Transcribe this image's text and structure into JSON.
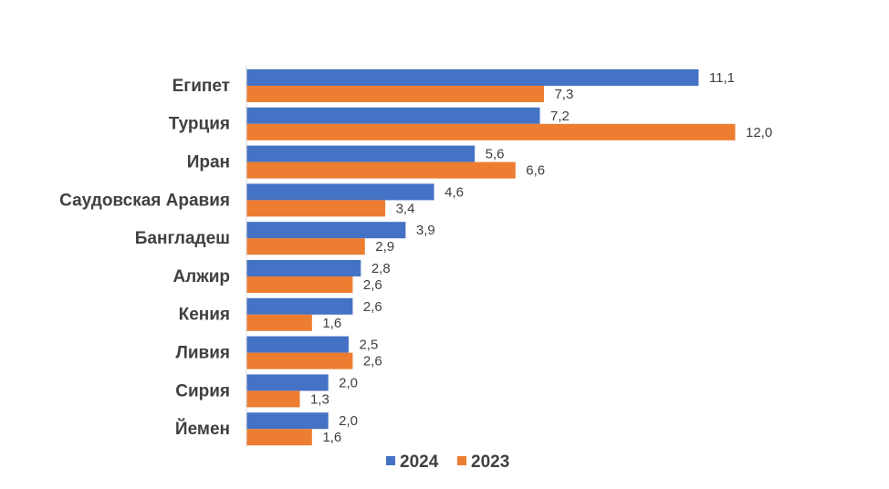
{
  "chart_data": {
    "type": "bar",
    "orientation": "horizontal",
    "categories": [
      "Египет",
      "Турция",
      "Иран",
      "Саудовская Аравия",
      "Бангладеш",
      "Алжир",
      "Кения",
      "Ливия",
      "Сирия",
      "Йемен"
    ],
    "series": [
      {
        "name": "2024",
        "color": "#4472C4",
        "values": [
          11.1,
          7.2,
          5.6,
          4.6,
          3.9,
          2.8,
          2.6,
          2.5,
          2.0,
          2.0
        ],
        "labels": [
          "11,1",
          "7,2",
          "5,6",
          "4,6",
          "3,9",
          "2,8",
          "2,6",
          "2,5",
          "2,0",
          "2,0"
        ]
      },
      {
        "name": "2023",
        "color": "#ED7D31",
        "values": [
          7.3,
          12.0,
          6.6,
          3.4,
          2.9,
          2.6,
          1.6,
          2.6,
          1.3,
          1.6
        ],
        "labels": [
          "7,3",
          "12,0",
          "6,6",
          "3,4",
          "2,9",
          "2,6",
          "1,6",
          "2,6",
          "1,3",
          "1,6"
        ]
      }
    ],
    "xlim": [
      0,
      13
    ],
    "grid": false,
    "legend": "bottom"
  }
}
